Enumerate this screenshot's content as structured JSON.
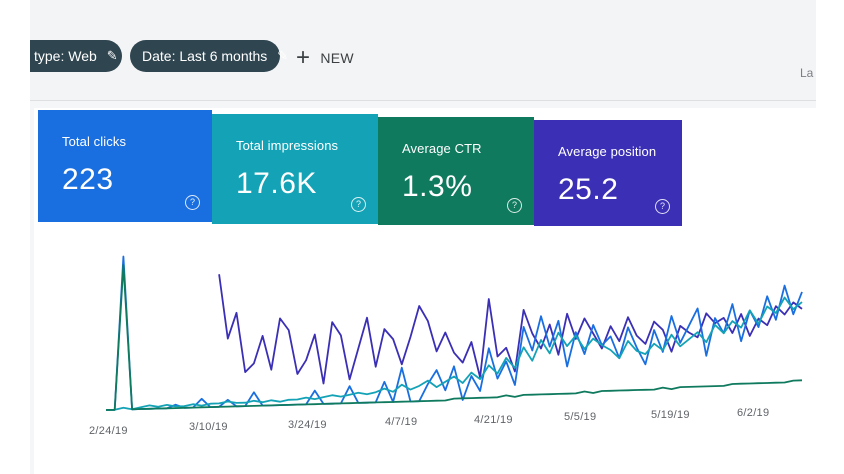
{
  "filters": {
    "type_chip": "type: Web",
    "date_chip": "Date: Last 6 months",
    "new_button": "NEW",
    "cutoff_label": "La"
  },
  "cards": [
    {
      "key": "clicks",
      "label": "Total clicks",
      "value": "223",
      "color": "#1a6fe0"
    },
    {
      "key": "impressions",
      "label": "Total impressions",
      "value": "17.6K",
      "color": "#14a3b6"
    },
    {
      "key": "ctr",
      "label": "Average CTR",
      "value": "1.3%",
      "color": "#0f7a5e"
    },
    {
      "key": "position",
      "label": "Average position",
      "value": "25.2",
      "color": "#3b2fb5"
    }
  ],
  "chart_data": {
    "type": "line",
    "x_tick_labels": [
      "2/24/19",
      "3/10/19",
      "3/24/19",
      "4/7/19",
      "4/21/19",
      "5/5/19",
      "5/19/19",
      "6/2/19"
    ],
    "grid": false,
    "series": [
      {
        "key": "position",
        "color": "#3b2fb5",
        "values": [
          null,
          null,
          null,
          null,
          null,
          null,
          null,
          null,
          null,
          null,
          null,
          null,
          null,
          0.78,
          0.4,
          0.55,
          0.2,
          0.25,
          0.41,
          0.21,
          0.51,
          0.44,
          0.18,
          0.26,
          0.41,
          0.12,
          0.48,
          0.4,
          0.14,
          0.32,
          0.5,
          0.21,
          0.43,
          0.37,
          0.22,
          0.38,
          0.56,
          0.47,
          0.29,
          0.4,
          0.28,
          0.22,
          0.34,
          0.13,
          0.59,
          0.25,
          0.3,
          0.16,
          0.52,
          0.38,
          0.29,
          0.43,
          0.25,
          0.49,
          0.34,
          0.46,
          0.37,
          0.28,
          0.41,
          0.32,
          0.46,
          0.35,
          0.3,
          0.43,
          0.38,
          0.25,
          0.4,
          0.36,
          0.33,
          0.47,
          0.41,
          0.44,
          0.35,
          0.46,
          0.33,
          0.43,
          0.39,
          0.5,
          0.45,
          0.52,
          0.48
        ]
      },
      {
        "key": "clicks",
        "color": "#1a6fe0",
        "values": [
          0,
          0,
          0.9,
          0,
          0,
          0,
          0,
          0,
          0.02,
          0,
          0,
          0.05,
          0,
          0,
          0.04,
          0,
          0,
          0.08,
          0,
          0,
          0,
          0,
          0,
          0,
          0.08,
          0,
          0,
          0,
          0.1,
          0,
          0,
          0,
          0.12,
          0,
          0.2,
          0,
          0,
          0.1,
          0.18,
          0.06,
          0.2,
          0,
          0.14,
          0.05,
          0.3,
          0.12,
          0.22,
          0.08,
          0.42,
          0.28,
          0.48,
          0.3,
          0.45,
          0.18,
          0.38,
          0.25,
          0.42,
          0.3,
          0.35,
          0.22,
          0.4,
          0.28,
          0.18,
          0.38,
          0.25,
          0.46,
          0.3,
          0.4,
          0.5,
          0.22,
          0.44,
          0.35,
          0.52,
          0.3,
          0.48,
          0.38,
          0.56,
          0.42,
          0.62,
          0.45,
          0.58
        ]
      },
      {
        "key": "impressions",
        "color": "#14a3b6",
        "values": [
          0,
          0,
          0.01,
          0,
          0.01,
          0.02,
          0.01,
          0.02,
          0.01,
          0.01,
          0.02,
          0.01,
          0.02,
          0.02,
          0.03,
          0.02,
          0.02,
          0.03,
          0.02,
          0.03,
          0.02,
          0.03,
          0.03,
          0.04,
          0.03,
          0.04,
          0.05,
          0.04,
          0.05,
          0.06,
          0.05,
          0.06,
          0.08,
          0.06,
          0.1,
          0.07,
          0.09,
          0.12,
          0.08,
          0.11,
          0.14,
          0.1,
          0.16,
          0.12,
          0.2,
          0.15,
          0.24,
          0.18,
          0.3,
          0.22,
          0.34,
          0.26,
          0.38,
          0.3,
          0.36,
          0.28,
          0.34,
          0.3,
          0.27,
          0.22,
          0.32,
          0.26,
          0.24,
          0.3,
          0.26,
          0.35,
          0.28,
          0.32,
          0.36,
          0.3,
          0.4,
          0.35,
          0.42,
          0.38,
          0.48,
          0.4,
          0.5,
          0.46,
          0.55,
          0.48,
          0.52
        ]
      },
      {
        "key": "ctr",
        "color": "#0f7a5e",
        "values": [
          0,
          0,
          0.85,
          0,
          0,
          0,
          0,
          0,
          0,
          0,
          0,
          0,
          0,
          0,
          0,
          0,
          0,
          0,
          0,
          0,
          0,
          0,
          0,
          0,
          0,
          0,
          0,
          0,
          0,
          0,
          0,
          0,
          0,
          0,
          0,
          0,
          0,
          0,
          0,
          0,
          0.01,
          0.01,
          0.01,
          0.01,
          0.01,
          0.01,
          0.02,
          0.01,
          0.02,
          0.02,
          0.02,
          0.02,
          0.02,
          0.02,
          0.02,
          0.03,
          0.02,
          0.03,
          0.03,
          0.03,
          0.03,
          0.03,
          0.03,
          0.03,
          0.04,
          0.03,
          0.04,
          0.04,
          0.04,
          0.04,
          0.04,
          0.04,
          0.05,
          0.05,
          0.05,
          0.05,
          0.05,
          0.05,
          0.05,
          0.06,
          0.06
        ]
      }
    ]
  }
}
